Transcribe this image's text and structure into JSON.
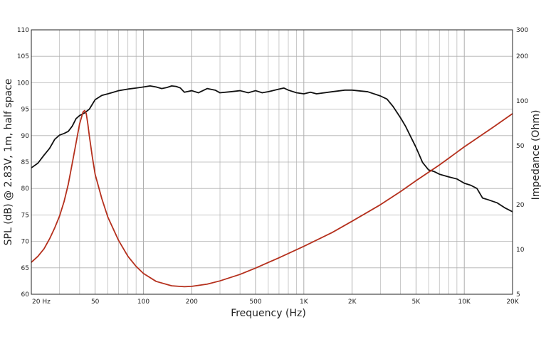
{
  "chart_data": {
    "type": "line",
    "title": "",
    "xlabel": "Frequency (Hz)",
    "ylabel_left": "SPL (dB) @ 2.83V, 1m, half space",
    "ylabel_right": "Impedance (Ohm)",
    "x_scale": "log",
    "xlim": [
      20,
      20000
    ],
    "ylim_left": [
      60,
      110
    ],
    "ylim_right": [
      5,
      300
    ],
    "y_right_scale": "log",
    "grid": true,
    "legend": "none",
    "x_tick_labels": [
      {
        "value": 20,
        "label": "20  Hz"
      },
      {
        "value": 50,
        "label": "50"
      },
      {
        "value": 100,
        "label": "100"
      },
      {
        "value": 200,
        "label": "200"
      },
      {
        "value": 500,
        "label": "500"
      },
      {
        "value": 1000,
        "label": "1K"
      },
      {
        "value": 2000,
        "label": "2K"
      },
      {
        "value": 5000,
        "label": "5K"
      },
      {
        "value": 10000,
        "label": "10K"
      },
      {
        "value": 20000,
        "label": "20K"
      }
    ],
    "y_left_ticks": [
      {
        "value": 60,
        "label": "60"
      },
      {
        "value": 65,
        "label": "65"
      },
      {
        "value": 70,
        "label": "70"
      },
      {
        "value": 75,
        "label": "75"
      },
      {
        "value": 80,
        "label": "80"
      },
      {
        "value": 85,
        "label": "85"
      },
      {
        "value": 90,
        "label": "90"
      },
      {
        "value": 95,
        "label": "95"
      },
      {
        "value": 100,
        "label": "100"
      },
      {
        "value": 105,
        "label": "105"
      },
      {
        "value": 110,
        "label": "110"
      }
    ],
    "y_right_ticks": [
      {
        "value": 5,
        "label": "5"
      },
      {
        "value": 10,
        "label": "10"
      },
      {
        "value": 20,
        "label": "20"
      },
      {
        "value": 50,
        "label": "50"
      },
      {
        "value": 100,
        "label": "100"
      },
      {
        "value": 200,
        "label": "200"
      },
      {
        "value": 300,
        "label": "300"
      }
    ],
    "series": [
      {
        "axis": "left",
        "color": "#111111",
        "points": [
          [
            20,
            83.9
          ],
          [
            22,
            84.8
          ],
          [
            24,
            86.3
          ],
          [
            26,
            87.6
          ],
          [
            28,
            89.3
          ],
          [
            30,
            90.1
          ],
          [
            32,
            90.4
          ],
          [
            34,
            90.8
          ],
          [
            36,
            91.8
          ],
          [
            38,
            93.2
          ],
          [
            40,
            93.8
          ],
          [
            43,
            94.3
          ],
          [
            46,
            95.0
          ],
          [
            50,
            96.8
          ],
          [
            55,
            97.6
          ],
          [
            60,
            97.9
          ],
          [
            65,
            98.2
          ],
          [
            70,
            98.5
          ],
          [
            80,
            98.8
          ],
          [
            90,
            99.0
          ],
          [
            100,
            99.2
          ],
          [
            110,
            99.4
          ],
          [
            120,
            99.2
          ],
          [
            130,
            98.9
          ],
          [
            140,
            99.1
          ],
          [
            150,
            99.4
          ],
          [
            160,
            99.3
          ],
          [
            170,
            99.0
          ],
          [
            180,
            98.2
          ],
          [
            200,
            98.5
          ],
          [
            220,
            98.1
          ],
          [
            250,
            98.9
          ],
          [
            280,
            98.6
          ],
          [
            300,
            98.1
          ],
          [
            350,
            98.3
          ],
          [
            400,
            98.5
          ],
          [
            450,
            98.1
          ],
          [
            500,
            98.5
          ],
          [
            550,
            98.1
          ],
          [
            600,
            98.3
          ],
          [
            700,
            98.8
          ],
          [
            750,
            99.0
          ],
          [
            800,
            98.6
          ],
          [
            900,
            98.1
          ],
          [
            1000,
            97.9
          ],
          [
            1100,
            98.2
          ],
          [
            1200,
            97.9
          ],
          [
            1500,
            98.3
          ],
          [
            1800,
            98.6
          ],
          [
            2000,
            98.6
          ],
          [
            2500,
            98.3
          ],
          [
            3000,
            97.5
          ],
          [
            3300,
            96.9
          ],
          [
            3600,
            95.5
          ],
          [
            4000,
            93.4
          ],
          [
            4300,
            91.8
          ],
          [
            4600,
            90.0
          ],
          [
            5000,
            87.8
          ],
          [
            5500,
            84.9
          ],
          [
            6000,
            83.5
          ],
          [
            6500,
            83.2
          ],
          [
            7000,
            82.7
          ],
          [
            8000,
            82.2
          ],
          [
            9000,
            81.8
          ],
          [
            10000,
            81.0
          ],
          [
            11000,
            80.6
          ],
          [
            12000,
            80.0
          ],
          [
            13000,
            78.2
          ],
          [
            14000,
            77.9
          ],
          [
            16000,
            77.3
          ],
          [
            18000,
            76.3
          ],
          [
            20000,
            75.6
          ]
        ]
      },
      {
        "axis": "right",
        "color": "#b5301d",
        "points": [
          [
            20,
            8.2
          ],
          [
            22,
            9.0
          ],
          [
            24,
            10.1
          ],
          [
            26,
            11.8
          ],
          [
            28,
            14.0
          ],
          [
            30,
            16.8
          ],
          [
            32,
            21.0
          ],
          [
            34,
            27.5
          ],
          [
            36,
            38.0
          ],
          [
            38,
            52.0
          ],
          [
            40,
            70.0
          ],
          [
            42,
            84.0
          ],
          [
            43,
            86.0
          ],
          [
            44,
            82.0
          ],
          [
            45,
            70.0
          ],
          [
            46,
            58.0
          ],
          [
            48,
            42.0
          ],
          [
            50,
            32.0
          ],
          [
            55,
            22.0
          ],
          [
            60,
            16.5
          ],
          [
            70,
            11.5
          ],
          [
            80,
            9.0
          ],
          [
            90,
            7.7
          ],
          [
            100,
            6.9
          ],
          [
            120,
            6.1
          ],
          [
            150,
            5.7
          ],
          [
            180,
            5.62
          ],
          [
            200,
            5.65
          ],
          [
            250,
            5.85
          ],
          [
            300,
            6.15
          ],
          [
            400,
            6.8
          ],
          [
            500,
            7.5
          ],
          [
            700,
            8.8
          ],
          [
            1000,
            10.5
          ],
          [
            1500,
            13.0
          ],
          [
            2000,
            15.5
          ],
          [
            3000,
            20.0
          ],
          [
            4000,
            24.5
          ],
          [
            5000,
            29.0
          ],
          [
            7000,
            37.0
          ],
          [
            10000,
            49.0
          ],
          [
            15000,
            66.0
          ],
          [
            20000,
            82.0
          ]
        ]
      }
    ]
  }
}
